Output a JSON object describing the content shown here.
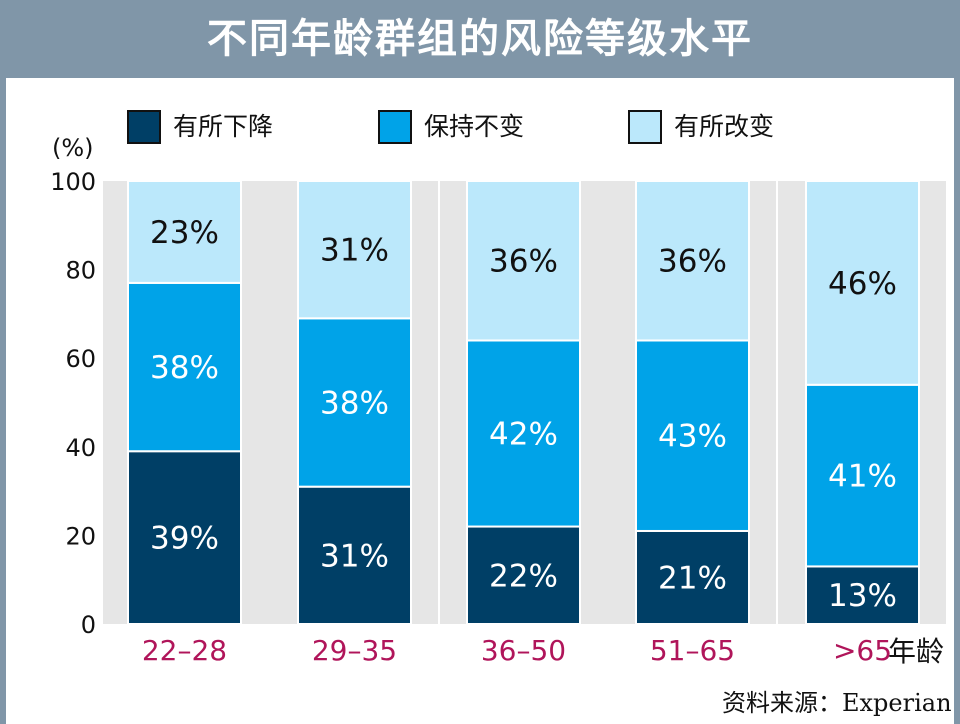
{
  "title": "不同年龄群组的风险等级水平",
  "legend": [
    {
      "label": "有所下降",
      "color": "#003f66"
    },
    {
      "label": "保持不变",
      "color": "#00a3e8"
    },
    {
      "label": "有所改变",
      "color": "#bbe8fb"
    }
  ],
  "unit_label": "(%)",
  "age_unit": "年龄",
  "source": "资料来源：Experian",
  "colors": {
    "background_stripe": "#e6e6e6",
    "frame": "#8096a8",
    "tick_label": "#b0155a"
  },
  "chart_data": {
    "type": "bar",
    "stacked": true,
    "title": "不同年龄群组的风险等级水平",
    "categories": [
      "22–28",
      "29–35",
      "36–50",
      "51–65",
      ">65"
    ],
    "series": [
      {
        "name": "有所下降",
        "values": [
          39,
          31,
          22,
          21,
          13
        ],
        "labels": [
          "39%",
          "31%",
          "22%",
          "21%",
          "13%"
        ]
      },
      {
        "name": "保持不变",
        "values": [
          38,
          38,
          42,
          43,
          41
        ],
        "labels": [
          "38%",
          "38%",
          "42%",
          "43%",
          "41%"
        ]
      },
      {
        "name": "有所改变",
        "values": [
          23,
          31,
          36,
          36,
          46
        ],
        "labels": [
          "23%",
          "31%",
          "36%",
          "36%",
          "46%"
        ]
      }
    ],
    "yticks": [
      0,
      20,
      40,
      60,
      80,
      100
    ],
    "ylim": [
      0,
      100
    ],
    "xlabel": "年龄",
    "ylabel": "(%)",
    "legend_position": "top"
  }
}
